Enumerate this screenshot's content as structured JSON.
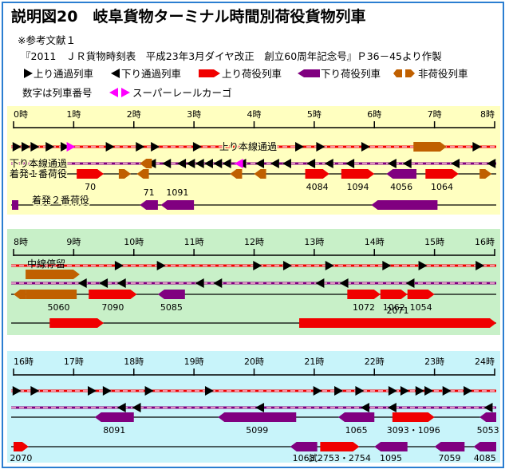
{
  "title": "説明図20　岐阜貨物ターミナル時間別荷役貨物列車",
  "reference_line": "※参考文献１",
  "source_line": "『2011　ＪＲ貨物時刻表　平成23年3月ダイヤ改正　創立60周年記念号』Ｐ36－45より作製",
  "legend": {
    "up_pass": "上り通過列車",
    "down_pass": "下り通過列車",
    "up_cargo": "上り荷役列車",
    "down_cargo": "下り荷役列車",
    "non_cargo": "非荷役列車",
    "number_note": "数字は列車番号",
    "super_rail": "スーパーレールカーゴ"
  },
  "colors": {
    "up": "#f00000",
    "down": "#800080",
    "non": "#c06000",
    "magenta": "#ff00ff",
    "panel1": "#ffffc0",
    "panel2": "#c8f0c8",
    "panel3": "#c8f4fa",
    "arrow": "#000000"
  },
  "panels": [
    {
      "hour_labels": [
        "0時",
        "1時",
        "2時",
        "3時",
        "4時",
        "5時",
        "6時",
        "7時",
        "8時"
      ],
      "track_labels": {
        "up_main": "上り本線通過",
        "down_main": "下り本線通過",
        "track1": "着発１番荷役",
        "track2": "着発２番荷役"
      },
      "up_pass_hours": [
        0.05,
        0.2,
        0.35,
        0.6,
        0.85,
        1.6,
        2.1,
        2.35,
        3.05,
        4.75,
        5.1,
        5.85,
        6.75,
        7.7
      ],
      "up_pass_magenta": [
        0.95
      ],
      "down_pass_hours": [
        2.3,
        2.55,
        2.8,
        2.95,
        3.1,
        3.25,
        3.4,
        3.55,
        3.8,
        4.1,
        4.35,
        4.55,
        4.95,
        5.25,
        5.6,
        6.3,
        6.55,
        7.35,
        7.95
      ],
      "down_pass_magenta": [
        3.75
      ],
      "non_blocks": [
        {
          "lane": "up_main",
          "start": 6.65,
          "end": 7.2,
          "dir": "right"
        },
        {
          "lane": "down_main",
          "start": 2.1,
          "end": 2.3,
          "dir": "left"
        },
        {
          "lane": "track1",
          "start": 1.75,
          "end": 1.95,
          "dir": "right"
        },
        {
          "lane": "track1",
          "start": 2.05,
          "end": 2.25,
          "dir": "left"
        },
        {
          "lane": "track1",
          "start": 3.6,
          "end": 3.8,
          "dir": "left"
        },
        {
          "lane": "track1",
          "start": 4.0,
          "end": 4.2,
          "dir": "left"
        },
        {
          "lane": "track1",
          "start": 7.75,
          "end": 7.95,
          "dir": "right"
        }
      ],
      "cargo_blocks": [
        {
          "lane": "track1",
          "start": 1.05,
          "end": 1.5,
          "type": "up",
          "label": "70"
        },
        {
          "lane": "track1",
          "start": 4.85,
          "end": 5.25,
          "type": "up",
          "label": "4084"
        },
        {
          "lane": "track1",
          "start": 5.45,
          "end": 6.0,
          "type": "up",
          "label": "1094"
        },
        {
          "lane": "track1",
          "start": 6.2,
          "end": 6.7,
          "type": "down",
          "label": "4056"
        },
        {
          "lane": "track1",
          "start": 6.85,
          "end": 7.4,
          "type": "up",
          "label": "1064"
        },
        {
          "lane": "track2",
          "start": 2.1,
          "end": 2.4,
          "type": "down",
          "label": "71"
        },
        {
          "lane": "track2",
          "start": 2.45,
          "end": 3.0,
          "type": "down",
          "label": "1091"
        },
        {
          "lane": "track2",
          "start": 5.95,
          "end": 7.05,
          "type": "down",
          "label": ""
        }
      ]
    },
    {
      "hour_labels": [
        "8時",
        "9時",
        "10時",
        "11時",
        "12時",
        "13時",
        "14時",
        "15時",
        "16時"
      ],
      "track_labels": {
        "chusen": "中線停留"
      },
      "up_pass_hours": [
        9.75,
        10.45,
        12.05,
        12.55,
        13.25,
        14.2,
        14.8,
        15.75
      ],
      "down_pass_hours": [
        9.15,
        9.5,
        9.8,
        11.1,
        11.4,
        13.1,
        13.5,
        14.6
      ],
      "non_blocks": [
        {
          "lane": "chusen",
          "start": 8.2,
          "end": 9.1,
          "dir": "right"
        },
        {
          "lane": "track1",
          "start": 8.0,
          "end": 8.2,
          "dir": "left"
        },
        {
          "lane": "track1",
          "start": 8.2,
          "end": 9.05,
          "dir": "none"
        }
      ],
      "cargo_blocks": [
        {
          "lane": "track1",
          "start": 9.25,
          "end": 10.05,
          "type": "up",
          "label": "7090"
        },
        {
          "lane": "track1",
          "start": 10.4,
          "end": 10.85,
          "type": "down",
          "label": "5085"
        },
        {
          "lane": "track1",
          "start": 13.55,
          "end": 14.1,
          "type": "up",
          "label": "1072"
        },
        {
          "lane": "track1",
          "start": 14.1,
          "end": 14.55,
          "type": "up",
          "label": "1062"
        },
        {
          "lane": "track1",
          "start": 14.55,
          "end": 15.0,
          "type": "up",
          "label": "1054"
        },
        {
          "lane": "track2",
          "start": 8.6,
          "end": 9.5,
          "type": "up",
          "label": ""
        },
        {
          "lane": "track2",
          "start": 12.75,
          "end": 16.1,
          "type": "up",
          "label": "2071"
        }
      ],
      "extra_labels": [
        {
          "lane": "track1",
          "hour": 8.75,
          "text": "5060"
        }
      ]
    },
    {
      "hour_labels": [
        "16時",
        "17時",
        "18時",
        "19時",
        "20時",
        "21時",
        "22時",
        "23時",
        "24時"
      ],
      "up_pass_hours": [
        16.05,
        16.35,
        17.3,
        17.55,
        18.25,
        19.25,
        21.05,
        21.4,
        21.75,
        22.3,
        22.5,
        22.75,
        22.9,
        23.2,
        23.55
      ],
      "down_pass_hours": [
        17.8,
        18.05,
        20.1,
        21.85,
        22.3,
        23.9
      ],
      "non_blocks": [],
      "cargo_blocks": [
        {
          "lane": "track1",
          "start": 17.35,
          "end": 18.0,
          "type": "down",
          "label": "8091"
        },
        {
          "lane": "track1",
          "start": 19.4,
          "end": 20.7,
          "type": "down",
          "label": "5099"
        },
        {
          "lane": "track1",
          "start": 21.4,
          "end": 22.0,
          "type": "down",
          "label": "1065"
        },
        {
          "lane": "track1",
          "start": 22.3,
          "end": 23.0,
          "type": "up",
          "label": "3093・1096"
        },
        {
          "lane": "track1",
          "start": 23.75,
          "end": 24.1,
          "type": "down",
          "label": "5053"
        },
        {
          "lane": "track2",
          "start": 16.0,
          "end": 16.25,
          "type": "up",
          "label": "2070"
        },
        {
          "lane": "track2",
          "start": 20.6,
          "end": 21.05,
          "type": "down",
          "label": "1063"
        },
        {
          "lane": "track2",
          "start": 21.1,
          "end": 21.75,
          "type": "up",
          "label": "試2753・2754"
        },
        {
          "lane": "track2",
          "start": 22.0,
          "end": 22.55,
          "type": "down",
          "label": "1095"
        },
        {
          "lane": "track2",
          "start": 23.0,
          "end": 23.5,
          "type": "down",
          "label": "7059"
        },
        {
          "lane": "track2",
          "start": 23.65,
          "end": 24.1,
          "type": "down",
          "label": "4085"
        }
      ]
    }
  ]
}
